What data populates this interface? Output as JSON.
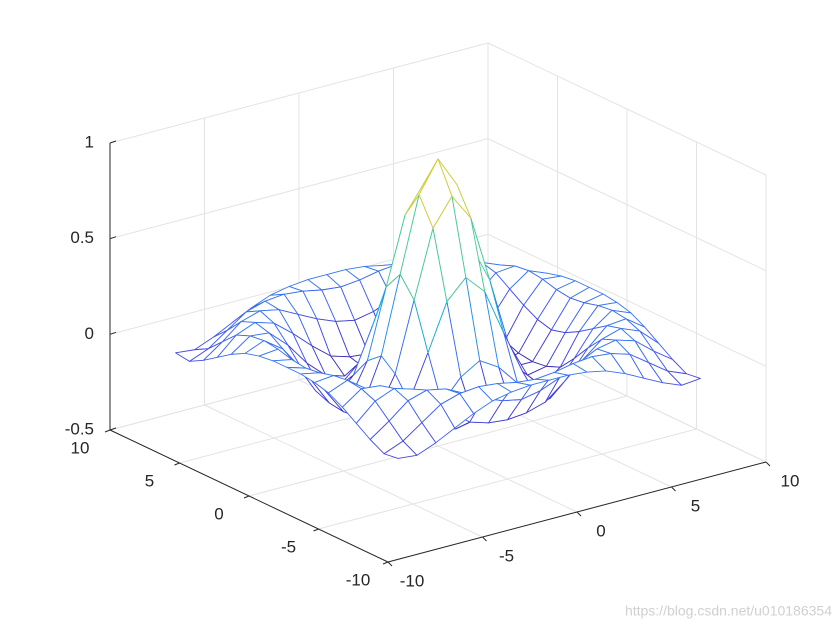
{
  "chart_data": {
    "type": "mesh",
    "x": [
      -8,
      -7,
      -6,
      -5,
      -4,
      -3,
      -2,
      -1,
      0,
      1,
      2,
      3,
      4,
      5,
      6,
      7,
      8
    ],
    "y": [
      -8,
      -7,
      -6,
      -5,
      -4,
      -3,
      -2,
      -1,
      0,
      1,
      2,
      3,
      4,
      5,
      6,
      7,
      8
    ],
    "z": [
      [
        -0.08,
        -0.09,
        -0.05,
        0.0,
        0.05,
        0.09,
        0.11,
        0.12,
        0.12,
        0.12,
        0.11,
        0.09,
        0.05,
        0.0,
        -0.05,
        -0.09,
        -0.08
      ],
      [
        -0.09,
        -0.05,
        0.02,
        0.09,
        0.12,
        0.13,
        0.12,
        0.1,
        0.09,
        0.1,
        0.12,
        0.13,
        0.12,
        0.09,
        0.02,
        -0.05,
        -0.09
      ],
      [
        -0.05,
        0.02,
        0.1,
        0.13,
        0.11,
        0.06,
        0.01,
        -0.03,
        -0.05,
        -0.03,
        0.01,
        0.06,
        0.11,
        0.13,
        0.1,
        0.02,
        -0.05
      ],
      [
        0.0,
        0.09,
        0.13,
        0.1,
        0.02,
        -0.07,
        -0.15,
        -0.18,
        -0.19,
        -0.18,
        -0.15,
        -0.07,
        0.02,
        0.1,
        0.13,
        0.09,
        0.0
      ],
      [
        0.05,
        0.12,
        0.11,
        0.02,
        -0.1,
        -0.19,
        -0.22,
        -0.2,
        -0.19,
        -0.2,
        -0.22,
        -0.19,
        -0.1,
        0.02,
        0.11,
        0.12,
        0.05
      ],
      [
        0.09,
        0.13,
        0.06,
        -0.07,
        -0.19,
        -0.21,
        -0.12,
        -0.01,
        0.05,
        -0.01,
        -0.12,
        -0.21,
        -0.19,
        -0.07,
        0.06,
        0.13,
        0.09
      ],
      [
        0.11,
        0.12,
        0.01,
        -0.15,
        -0.22,
        -0.12,
        0.11,
        0.35,
        0.45,
        0.35,
        0.11,
        -0.12,
        -0.22,
        -0.15,
        0.01,
        0.12,
        0.11
      ],
      [
        0.12,
        0.1,
        -0.03,
        -0.18,
        -0.2,
        -0.01,
        0.35,
        0.7,
        0.84,
        0.7,
        0.35,
        -0.01,
        -0.2,
        -0.18,
        -0.03,
        0.1,
        0.12
      ],
      [
        0.12,
        0.09,
        -0.05,
        -0.19,
        -0.19,
        0.05,
        0.45,
        0.84,
        1,
        0.84,
        0.45,
        0.05,
        -0.19,
        -0.19,
        -0.05,
        0.09,
        0.12
      ],
      [
        0.12,
        0.1,
        -0.03,
        -0.18,
        -0.2,
        -0.01,
        0.35,
        0.7,
        0.84,
        0.7,
        0.35,
        -0.01,
        -0.2,
        -0.18,
        -0.03,
        0.1,
        0.12
      ],
      [
        0.11,
        0.12,
        0.01,
        -0.15,
        -0.22,
        -0.12,
        0.11,
        0.35,
        0.45,
        0.35,
        0.11,
        -0.12,
        -0.22,
        -0.15,
        0.01,
        0.12,
        0.11
      ],
      [
        0.09,
        0.13,
        0.06,
        -0.07,
        -0.19,
        -0.21,
        -0.12,
        -0.01,
        0.05,
        -0.01,
        -0.12,
        -0.21,
        -0.19,
        -0.07,
        0.06,
        0.13,
        0.09
      ],
      [
        0.05,
        0.12,
        0.11,
        0.02,
        -0.1,
        -0.19,
        -0.22,
        -0.2,
        -0.19,
        -0.2,
        -0.22,
        -0.19,
        -0.1,
        0.02,
        0.11,
        0.12,
        0.05
      ],
      [
        0.0,
        0.09,
        0.13,
        0.1,
        0.02,
        -0.07,
        -0.15,
        -0.18,
        -0.19,
        -0.18,
        -0.15,
        -0.07,
        0.02,
        0.1,
        0.13,
        0.09,
        0.0
      ],
      [
        -0.05,
        0.02,
        0.1,
        0.13,
        0.11,
        0.06,
        0.01,
        -0.03,
        -0.05,
        -0.03,
        0.01,
        0.06,
        0.11,
        0.13,
        0.1,
        0.02,
        -0.05
      ],
      [
        -0.09,
        -0.05,
        0.02,
        0.09,
        0.12,
        0.13,
        0.12,
        0.1,
        0.09,
        0.1,
        0.12,
        0.13,
        0.12,
        0.09,
        0.02,
        -0.05,
        -0.09
      ],
      [
        -0.08,
        -0.09,
        -0.05,
        0.0,
        0.05,
        0.09,
        0.11,
        0.12,
        0.12,
        0.12,
        0.11,
        0.09,
        0.05,
        0.0,
        -0.05,
        -0.09,
        -0.08
      ]
    ],
    "xlim": [
      -10,
      10
    ],
    "ylim": [
      -10,
      10
    ],
    "zlim": [
      -0.5,
      1
    ],
    "xticks": [
      -10,
      -5,
      0,
      5,
      10
    ],
    "yticks": [
      -10,
      -5,
      0,
      5,
      10
    ],
    "zticks": [
      -0.5,
      0,
      0.5,
      1
    ],
    "grid": true,
    "colormap": "parula"
  },
  "watermark": "https://blog.csdn.net/u010186354"
}
